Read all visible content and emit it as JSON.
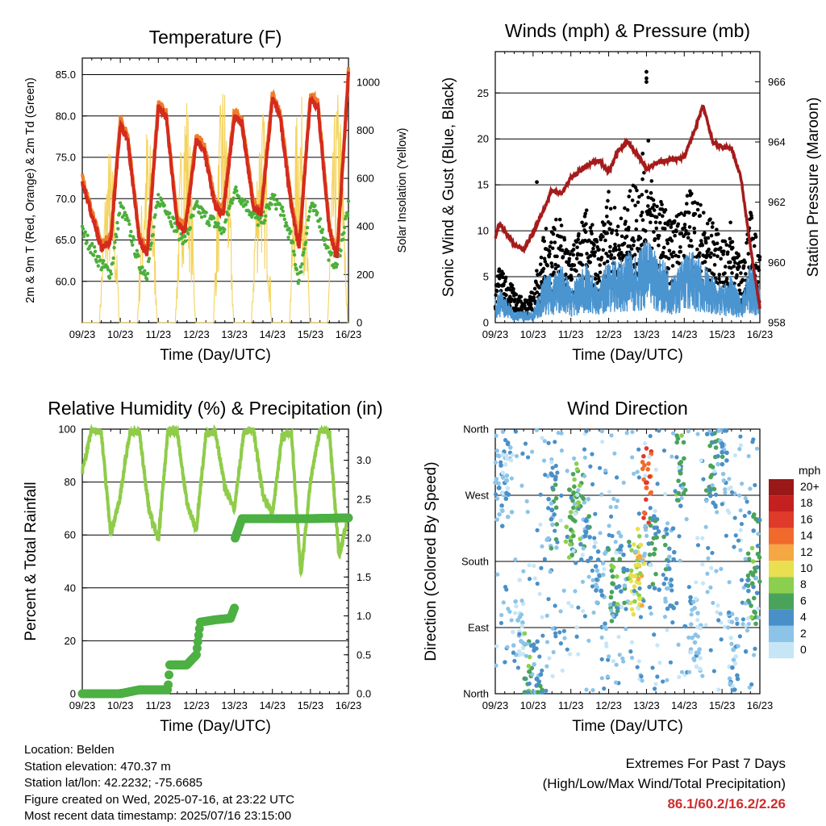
{
  "x_ticks": [
    "09/23",
    "10/23",
    "11/23",
    "12/23",
    "13/23",
    "14/23",
    "15/23",
    "16/23"
  ],
  "temperature": {
    "title": "Temperature (F)",
    "xlabel": "Time (Day/UTC)",
    "ylabel": "2m & 9m T (Red, Orange) & 2m Td (Green)",
    "ylabel_right": "Solar Insolation (Yellow)",
    "yticks": [
      "60.0",
      "65.0",
      "70.0",
      "75.0",
      "80.0",
      "85.0"
    ],
    "yticks_right": [
      "0",
      "200",
      "400",
      "600",
      "800",
      "1000"
    ]
  },
  "winds": {
    "title": "Winds (mph) & Pressure (mb)",
    "xlabel": "Time (Day/UTC)",
    "ylabel": "Sonic Wind & Gust (Blue, Black)",
    "ylabel_right": "Station Pressure (Maroon)",
    "yticks": [
      "0",
      "5",
      "10",
      "15",
      "20",
      "25"
    ],
    "yticks_right": [
      "958",
      "960",
      "962",
      "964",
      "966"
    ]
  },
  "humidity": {
    "title": "Relative Humidity (%) & Precipitation (in)",
    "xlabel": "Time (Day/UTC)",
    "ylabel": "Percent & Total Rainfall",
    "yticks": [
      "0",
      "20",
      "40",
      "60",
      "80",
      "100"
    ],
    "yticks_right": [
      "0.0",
      "0.5",
      "1.0",
      "1.5",
      "2.0",
      "2.5",
      "3.0"
    ]
  },
  "direction": {
    "title": "Wind Direction",
    "xlabel": "Time (Day/UTC)",
    "ylabel": "Direction (Colored By Speed)",
    "yticks": [
      "North",
      "East",
      "South",
      "West",
      "North"
    ],
    "legend_title": "mph",
    "legend_labels": [
      "0",
      "2",
      "4",
      "6",
      "8",
      "10",
      "12",
      "14",
      "16",
      "18",
      "20+"
    ],
    "legend_colors": [
      "#c6e6f7",
      "#8cc4e8",
      "#4a90c8",
      "#4aa35a",
      "#8ccf4e",
      "#e8e050",
      "#f4a742",
      "#f06a2c",
      "#e03a2a",
      "#c42020",
      "#9a1818"
    ]
  },
  "info": {
    "location": "Location: Belden",
    "elevation": "Station elevation: 470.37 m",
    "latlon": "Station lat/lon: 42.2232; -75.6685",
    "created": "Figure created on Wed, 2025-07-16, at 23:22 UTC",
    "timestamp": "Most recent data timestamp: 2025/07/16 23:15:00"
  },
  "extremes": {
    "line1": "Extremes For Past 7 Days",
    "line2": "(High/Low/Max Wind/Total Precipitation)",
    "values": "86.1/60.2/16.2/2.26"
  },
  "chart_data": [
    {
      "type": "line",
      "title": "Temperature (F)",
      "xlabel": "Time (Day/UTC)",
      "ylabel": "2m & 9m T (Red, Orange) & 2m Td (Green)",
      "ylabel_right": "Solar Insolation (Yellow)",
      "x": [
        9.0,
        9.5,
        9.75,
        10.0,
        10.2,
        10.5,
        10.7,
        11.0,
        11.2,
        11.5,
        11.7,
        12.0,
        12.2,
        12.5,
        12.7,
        13.0,
        13.2,
        13.5,
        13.7,
        14.0,
        14.2,
        14.5,
        14.7,
        15.0,
        15.2,
        15.5,
        15.7,
        16.0
      ],
      "series": [
        {
          "name": "2m T",
          "values": [
            72,
            64,
            65,
            79,
            77,
            65,
            63,
            81,
            80,
            67,
            66,
            77,
            76,
            69,
            68,
            80,
            79,
            69,
            68,
            82,
            80,
            69,
            64,
            82,
            81,
            66,
            63,
            85
          ]
        },
        {
          "name": "2m Td",
          "values": [
            66,
            62,
            61,
            69,
            67,
            62,
            61,
            70,
            69,
            66,
            65,
            69,
            68,
            67,
            66,
            71,
            70,
            68,
            67,
            70,
            69,
            65,
            60,
            69,
            68,
            63,
            62,
            69
          ]
        },
        {
          "name": "Solar Insolation",
          "x": [
            9.5,
            9.7,
            10.5,
            10.7,
            11.5,
            11.7,
            12.5,
            12.7,
            13.5,
            13.7,
            14.5,
            14.7,
            15.5,
            15.7
          ],
          "values": [
            750,
            500,
            850,
            600,
            1020,
            900,
            1050,
            800,
            950,
            700,
            1000,
            850,
            980,
            700
          ]
        }
      ],
      "ylim": [
        55,
        87
      ],
      "ylim_right": [
        0,
        1100
      ]
    },
    {
      "type": "line",
      "title": "Winds (mph) & Pressure (mb)",
      "xlabel": "Time (Day/UTC)",
      "ylabel": "Sonic Wind & Gust (Blue, Black)",
      "ylabel_right": "Station Pressure (Maroon)",
      "x": [
        9.0,
        9.1,
        9.5,
        9.75,
        10.0,
        10.3,
        10.5,
        10.75,
        11.0,
        11.4,
        11.75,
        12.0,
        12.25,
        12.5,
        12.75,
        13.0,
        13.25,
        13.5,
        13.75,
        14.0,
        14.25,
        14.5,
        14.75,
        15.0,
        15.25,
        15.5,
        15.75,
        16.0
      ],
      "series": [
        {
          "name": "Sonic Wind",
          "values": [
            2,
            3,
            1,
            1,
            1,
            4,
            4,
            5,
            3,
            5,
            3,
            6,
            5,
            6,
            6,
            7,
            6,
            5,
            4,
            6,
            6,
            5,
            4,
            3,
            4,
            2,
            5,
            3
          ]
        },
        {
          "name": "Gust",
          "values": [
            4,
            5,
            3,
            2,
            3,
            8,
            9,
            9,
            6,
            10,
            7,
            12,
            9,
            11,
            13,
            14,
            12,
            10,
            9,
            11,
            12,
            10,
            9,
            7,
            9,
            5,
            10,
            6
          ]
        },
        {
          "name": "Station Pressure",
          "values": [
            960.8,
            961.3,
            960.6,
            960.4,
            961.0,
            961.8,
            962.4,
            962.3,
            962.8,
            963.2,
            963.4,
            963.0,
            963.7,
            964.0,
            963.6,
            963.1,
            963.3,
            963.4,
            963.4,
            963.5,
            964.3,
            965.2,
            964.0,
            963.8,
            963.8,
            962.8,
            960.5,
            958.5
          ]
        }
      ],
      "ylim": [
        0,
        29.5
      ],
      "ylim_right": [
        958,
        967
      ]
    },
    {
      "type": "line",
      "title": "Relative Humidity (%) & Precipitation (in)",
      "xlabel": "Time (Day/UTC)",
      "ylabel": "Percent & Total Rainfall",
      "x": [
        9.0,
        9.25,
        9.5,
        9.75,
        10.0,
        10.25,
        10.5,
        10.75,
        11.0,
        11.25,
        11.5,
        11.75,
        12.0,
        12.25,
        12.5,
        12.75,
        13.0,
        13.25,
        13.5,
        13.75,
        14.0,
        14.25,
        14.5,
        14.75,
        15.0,
        15.25,
        15.5,
        15.75,
        16.0
      ],
      "series": [
        {
          "name": "Relative Humidity",
          "values": [
            84,
            100,
            99,
            60,
            75,
            99,
            99,
            70,
            58,
            99,
            99,
            72,
            62,
            98,
            99,
            78,
            70,
            99,
            100,
            75,
            68,
            97,
            99,
            45,
            80,
            100,
            99,
            52,
            67
          ]
        },
        {
          "name": "Total Rainfall",
          "x": [
            9.0,
            10.0,
            10.5,
            11.25,
            11.3,
            11.75,
            12.0,
            12.1,
            12.5,
            12.9,
            13.0,
            13.02,
            13.2,
            14.0,
            15.0,
            16.0
          ],
          "values": [
            0.0,
            0.0,
            0.05,
            0.05,
            0.37,
            0.37,
            0.5,
            0.92,
            0.95,
            0.97,
            1.1,
            2.0,
            2.25,
            2.25,
            2.25,
            2.26
          ]
        }
      ],
      "ylim": [
        0,
        100
      ],
      "ylim_right": [
        0,
        3.4
      ]
    },
    {
      "type": "scatter",
      "title": "Wind Direction",
      "xlabel": "Time (Day/UTC)",
      "ylabel": "Direction (Colored By Speed)",
      "y_categories": [
        "North",
        "East",
        "South",
        "West",
        "North"
      ],
      "ylim": [
        0,
        360
      ],
      "color_scale": {
        "label": "mph",
        "levels": [
          "0",
          "2",
          "4",
          "6",
          "8",
          "10",
          "12",
          "14",
          "16",
          "18",
          "20+"
        ]
      },
      "points": [
        {
          "x": 9.1,
          "y": 280,
          "speed": 3
        },
        {
          "x": 9.3,
          "y": 290,
          "speed": 2
        },
        {
          "x": 9.6,
          "y": 100,
          "speed": 1
        },
        {
          "x": 9.9,
          "y": 30,
          "speed": 6
        },
        {
          "x": 10.1,
          "y": 20,
          "speed": 4
        },
        {
          "x": 10.5,
          "y": 250,
          "speed": 4
        },
        {
          "x": 11.0,
          "y": 240,
          "speed": 6
        },
        {
          "x": 11.2,
          "y": 260,
          "speed": 7
        },
        {
          "x": 11.4,
          "y": 220,
          "speed": 4
        },
        {
          "x": 11.8,
          "y": 140,
          "speed": 3
        },
        {
          "x": 12.1,
          "y": 150,
          "speed": 6
        },
        {
          "x": 12.4,
          "y": 170,
          "speed": 4
        },
        {
          "x": 12.7,
          "y": 160,
          "speed": 9
        },
        {
          "x": 12.8,
          "y": 175,
          "speed": 10
        },
        {
          "x": 13.0,
          "y": 280,
          "speed": 14
        },
        {
          "x": 13.2,
          "y": 190,
          "speed": 5
        },
        {
          "x": 13.6,
          "y": 170,
          "speed": 4
        },
        {
          "x": 13.9,
          "y": 300,
          "speed": 6
        },
        {
          "x": 14.3,
          "y": 80,
          "speed": 2
        },
        {
          "x": 14.7,
          "y": 310,
          "speed": 5
        },
        {
          "x": 15.0,
          "y": 340,
          "speed": 4
        },
        {
          "x": 15.3,
          "y": 60,
          "speed": 2
        },
        {
          "x": 15.8,
          "y": 150,
          "speed": 6
        },
        {
          "x": 15.95,
          "y": 190,
          "speed": 5
        }
      ]
    }
  ]
}
